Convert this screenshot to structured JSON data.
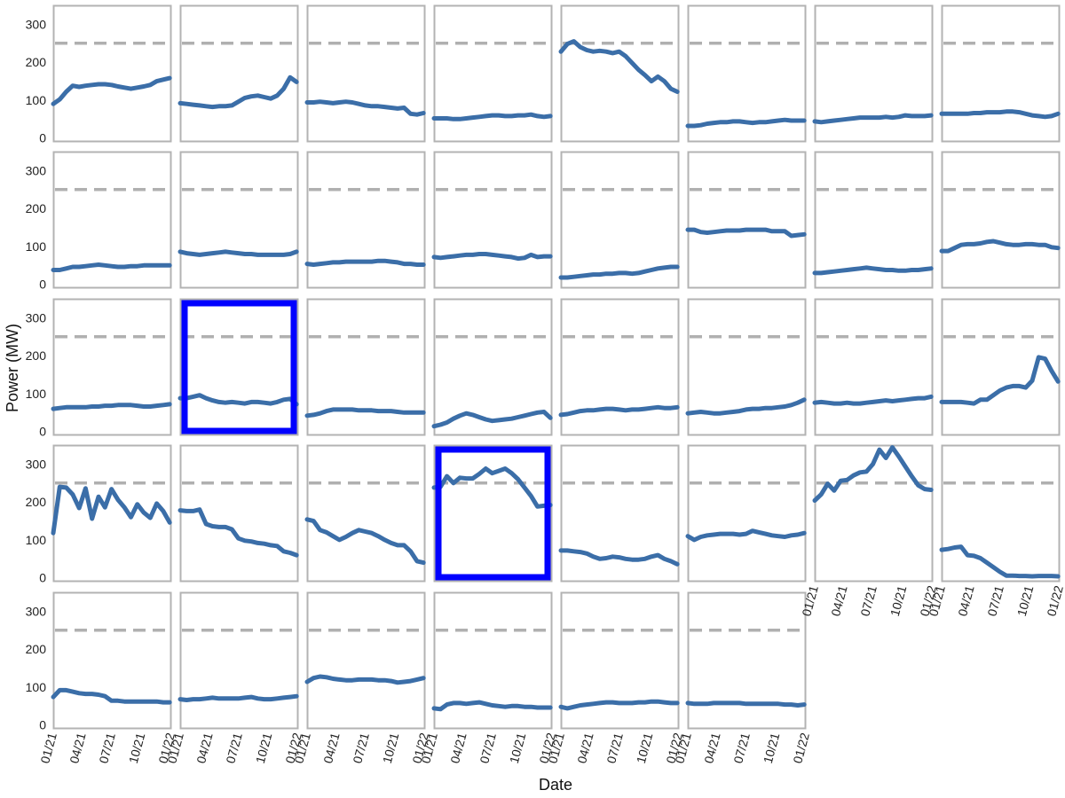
{
  "chart_data": {
    "type": "line",
    "layout": "small-multiples-grid",
    "xlabel": "Date",
    "ylabel": "Power (MW)",
    "ylim": [
      -10,
      350
    ],
    "xlim": [
      "2021-01-01",
      "2022-01-01"
    ],
    "x_ticks": [
      "01/21",
      "04/21",
      "07/21",
      "10/21",
      "01/22"
    ],
    "y_ticks": [
      0,
      100,
      200,
      300
    ],
    "reference_line": {
      "value": 250,
      "style": "dashed",
      "color": "#b0b0b0"
    },
    "series_color": "#3b6ea8",
    "highlight_color": "#0000ff",
    "panel_border_color": "#b3b3b3",
    "x": [
      "2021-01-01",
      "2021-01-21",
      "2021-02-10",
      "2021-03-02",
      "2021-03-22",
      "2021-04-11",
      "2021-05-01",
      "2021-05-21",
      "2021-06-10",
      "2021-06-30",
      "2021-07-20",
      "2021-08-09",
      "2021-08-29",
      "2021-09-18",
      "2021-10-08",
      "2021-10-28",
      "2021-11-17",
      "2021-12-07",
      "2021-12-27"
    ],
    "panels": [
      {
        "values": [
          90,
          102,
          122,
          138,
          135,
          138,
          140,
          142,
          142,
          140,
          136,
          133,
          130,
          133,
          136,
          140,
          150,
          154,
          158
        ],
        "highlight": false
      },
      {
        "values": [
          92,
          90,
          88,
          86,
          84,
          82,
          84,
          84,
          86,
          96,
          106,
          110,
          112,
          108,
          104,
          112,
          130,
          160,
          148
        ],
        "highlight": false
      },
      {
        "values": [
          94,
          94,
          96,
          94,
          92,
          94,
          96,
          94,
          90,
          86,
          84,
          84,
          82,
          80,
          78,
          80,
          64,
          62,
          66
        ],
        "highlight": false
      },
      {
        "values": [
          52,
          52,
          52,
          50,
          50,
          52,
          54,
          56,
          58,
          60,
          60,
          58,
          58,
          60,
          60,
          62,
          58,
          56,
          58
        ],
        "highlight": false
      },
      {
        "values": [
          228,
          248,
          255,
          240,
          232,
          228,
          230,
          228,
          224,
          228,
          216,
          198,
          180,
          166,
          150,
          162,
          150,
          130,
          122
        ],
        "highlight": false
      },
      {
        "values": [
          32,
          32,
          34,
          38,
          40,
          42,
          42,
          44,
          44,
          42,
          40,
          42,
          42,
          44,
          46,
          48,
          46,
          46,
          46
        ],
        "highlight": false
      },
      {
        "values": [
          44,
          42,
          44,
          46,
          48,
          50,
          52,
          54,
          54,
          54,
          54,
          56,
          54,
          56,
          60,
          58,
          58,
          58,
          60
        ],
        "highlight": false
      },
      {
        "values": [
          64,
          64,
          64,
          64,
          64,
          66,
          66,
          68,
          68,
          68,
          70,
          70,
          68,
          64,
          60,
          58,
          56,
          58,
          64
        ],
        "highlight": false
      },
      {
        "values": [
          38,
          38,
          42,
          46,
          46,
          48,
          50,
          52,
          50,
          48,
          46,
          46,
          48,
          48,
          50,
          50,
          50,
          50,
          50
        ],
        "highlight": false
      },
      {
        "values": [
          86,
          82,
          80,
          78,
          80,
          82,
          84,
          86,
          84,
          82,
          80,
          80,
          78,
          78,
          78,
          78,
          78,
          80,
          86
        ],
        "highlight": false
      },
      {
        "values": [
          54,
          52,
          54,
          56,
          58,
          58,
          60,
          60,
          60,
          60,
          60,
          62,
          62,
          60,
          58,
          54,
          54,
          52,
          52
        ],
        "highlight": false
      },
      {
        "values": [
          72,
          70,
          72,
          74,
          76,
          78,
          78,
          80,
          80,
          78,
          76,
          74,
          72,
          68,
          70,
          78,
          72,
          74,
          74
        ],
        "highlight": false
      },
      {
        "values": [
          18,
          18,
          20,
          22,
          24,
          26,
          26,
          28,
          28,
          30,
          30,
          28,
          30,
          34,
          38,
          42,
          44,
          46,
          46
        ],
        "highlight": false
      },
      {
        "values": [
          144,
          144,
          138,
          136,
          138,
          140,
          142,
          142,
          142,
          144,
          144,
          144,
          144,
          140,
          140,
          140,
          128,
          130,
          132
        ],
        "highlight": false
      },
      {
        "values": [
          30,
          30,
          32,
          34,
          36,
          38,
          40,
          42,
          44,
          42,
          40,
          38,
          38,
          36,
          36,
          38,
          38,
          40,
          42
        ],
        "highlight": false
      },
      {
        "values": [
          88,
          88,
          96,
          104,
          106,
          106,
          108,
          112,
          114,
          110,
          106,
          104,
          104,
          106,
          106,
          104,
          104,
          98,
          96
        ],
        "highlight": false
      },
      {
        "values": [
          60,
          62,
          64,
          64,
          64,
          64,
          66,
          66,
          68,
          68,
          70,
          70,
          70,
          68,
          66,
          66,
          68,
          70,
          72
        ],
        "highlight": false
      },
      {
        "values": [
          88,
          88,
          92,
          96,
          88,
          82,
          78,
          76,
          78,
          76,
          74,
          78,
          78,
          76,
          74,
          78,
          84,
          86,
          72
        ],
        "highlight": true
      },
      {
        "values": [
          42,
          44,
          48,
          54,
          58,
          58,
          58,
          58,
          56,
          56,
          56,
          54,
          54,
          54,
          52,
          50,
          50,
          50,
          50
        ],
        "highlight": false
      },
      {
        "values": [
          14,
          18,
          24,
          34,
          42,
          48,
          44,
          38,
          32,
          28,
          30,
          32,
          34,
          38,
          42,
          46,
          50,
          52,
          36
        ],
        "highlight": false
      },
      {
        "values": [
          44,
          46,
          50,
          54,
          56,
          56,
          58,
          60,
          60,
          58,
          56,
          58,
          58,
          60,
          62,
          64,
          62,
          62,
          64
        ],
        "highlight": false
      },
      {
        "values": [
          48,
          50,
          52,
          50,
          48,
          48,
          50,
          52,
          54,
          58,
          60,
          60,
          62,
          62,
          64,
          66,
          70,
          76,
          84
        ],
        "highlight": false
      },
      {
        "values": [
          76,
          78,
          76,
          74,
          74,
          76,
          74,
          74,
          76,
          78,
          80,
          82,
          80,
          82,
          84,
          86,
          88,
          88,
          92
        ],
        "highlight": false
      },
      {
        "values": [
          78,
          78,
          78,
          78,
          76,
          74,
          84,
          84,
          96,
          108,
          116,
          120,
          120,
          116,
          134,
          196,
          192,
          160,
          132
        ],
        "highlight": false
      },
      {
        "values": [
          118,
          240,
          238,
          220,
          184,
          236,
          156,
          214,
          186,
          234,
          206,
          186,
          160,
          194,
          172,
          158,
          196,
          176,
          146
        ],
        "highlight": false
      },
      {
        "values": [
          178,
          176,
          176,
          180,
          142,
          136,
          134,
          134,
          128,
          104,
          98,
          96,
          92,
          90,
          86,
          84,
          70,
          66,
          60
        ],
        "highlight": false
      },
      {
        "values": [
          154,
          150,
          126,
          120,
          110,
          100,
          108,
          118,
          126,
          122,
          118,
          110,
          100,
          92,
          86,
          86,
          70,
          44,
          40
        ],
        "highlight": false
      },
      {
        "values": [
          238,
          240,
          268,
          250,
          264,
          262,
          262,
          274,
          288,
          276,
          282,
          288,
          276,
          260,
          238,
          216,
          188,
          190,
          192
        ],
        "highlight": true
      },
      {
        "values": [
          72,
          72,
          70,
          68,
          64,
          56,
          50,
          52,
          56,
          54,
          50,
          48,
          48,
          50,
          56,
          60,
          50,
          44,
          36
        ],
        "highlight": false
      },
      {
        "values": [
          110,
          100,
          108,
          112,
          114,
          116,
          116,
          116,
          114,
          116,
          124,
          120,
          116,
          112,
          110,
          108,
          112,
          114,
          118
        ],
        "highlight": false
      },
      {
        "values": [
          204,
          220,
          248,
          230,
          256,
          258,
          270,
          278,
          280,
          300,
          338,
          316,
          344,
          320,
          294,
          268,
          244,
          234,
          232
        ],
        "highlight": false
      },
      {
        "values": [
          74,
          76,
          80,
          82,
          60,
          58,
          52,
          40,
          28,
          16,
          6,
          6,
          5,
          5,
          4,
          5,
          5,
          5,
          4
        ],
        "highlight": false
      },
      {
        "values": [
          74,
          92,
          92,
          88,
          84,
          82,
          82,
          80,
          76,
          64,
          64,
          62,
          62,
          62,
          62,
          62,
          62,
          60,
          60
        ],
        "highlight": false
      },
      {
        "values": [
          68,
          66,
          68,
          68,
          70,
          72,
          70,
          70,
          70,
          70,
          72,
          74,
          70,
          68,
          68,
          70,
          72,
          74,
          76
        ],
        "highlight": false
      },
      {
        "values": [
          114,
          124,
          128,
          126,
          122,
          120,
          118,
          118,
          120,
          120,
          120,
          118,
          118,
          116,
          112,
          114,
          116,
          120,
          124
        ],
        "highlight": false
      },
      {
        "values": [
          44,
          42,
          54,
          58,
          58,
          56,
          58,
          60,
          56,
          52,
          50,
          48,
          50,
          50,
          48,
          48,
          46,
          46,
          46
        ],
        "highlight": false
      },
      {
        "values": [
          48,
          44,
          48,
          52,
          54,
          56,
          58,
          60,
          60,
          58,
          58,
          58,
          60,
          60,
          62,
          62,
          60,
          58,
          58
        ],
        "highlight": false
      },
      {
        "values": [
          58,
          56,
          56,
          56,
          58,
          58,
          58,
          58,
          58,
          56,
          56,
          56,
          56,
          56,
          56,
          54,
          54,
          52,
          54
        ],
        "highlight": false
      }
    ]
  }
}
